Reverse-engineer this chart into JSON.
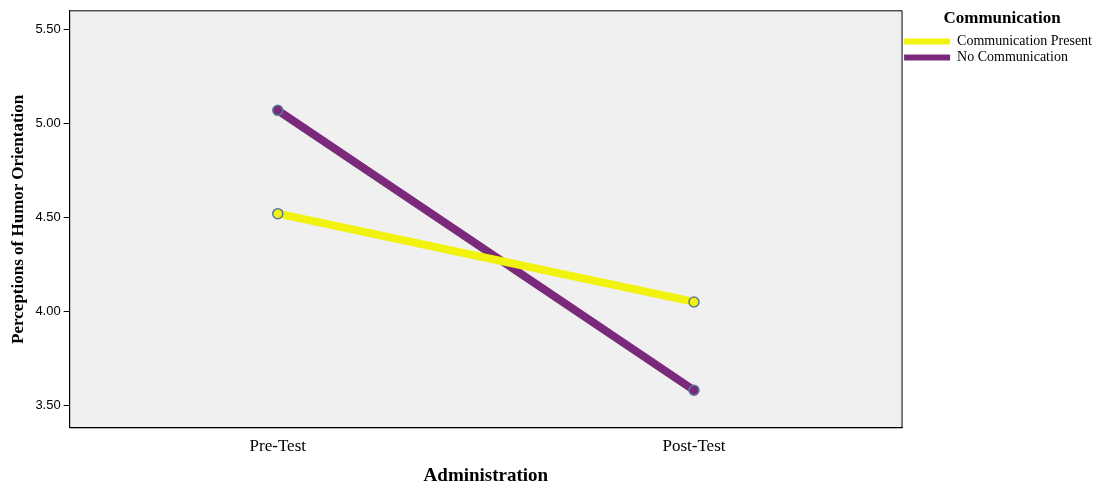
{
  "chart_data": {
    "type": "line",
    "xlabel": "Administration",
    "ylabel": "Perceptions of Humor Orientation",
    "legend_title": "Communication",
    "categories": [
      "Pre-Test",
      "Post-Test"
    ],
    "series": [
      {
        "name": "Communication Present",
        "color": "#f2f20f",
        "values": [
          4.52,
          4.05
        ]
      },
      {
        "name": "No Communication",
        "color": "#7b2a7b",
        "values": [
          5.07,
          3.58
        ]
      }
    ],
    "ylim": [
      3.38,
      5.6
    ],
    "yticks": [
      {
        "value": 3.5,
        "label": "3.50"
      },
      {
        "value": 4,
        "label": "4.00"
      },
      {
        "value": 4.5,
        "label": "4.50"
      },
      {
        "value": 5,
        "label": "5.00"
      },
      {
        "value": 5.5,
        "label": "5.50"
      }
    ],
    "grid": false,
    "legend": "top right",
    "marker": "circle",
    "line_style": "solid"
  }
}
